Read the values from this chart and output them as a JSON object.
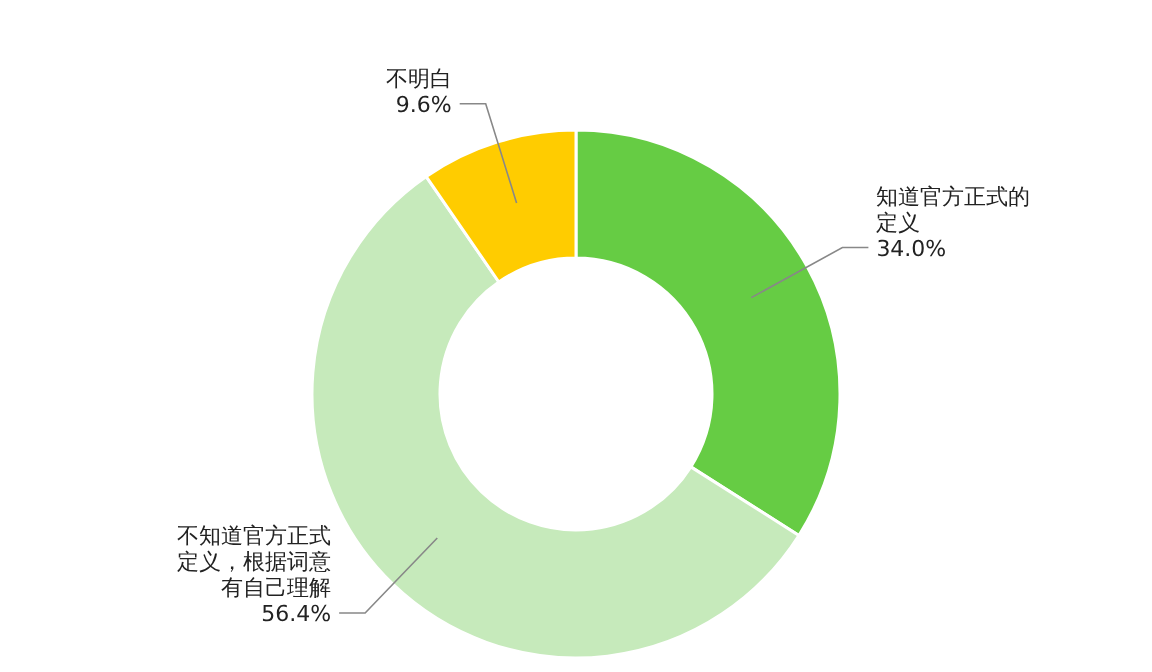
{
  "chart_data": {
    "type": "donut",
    "categories": [
      "知道官方正式的定义",
      "不知道官方正式定义，根据词意有自己理解",
      "不明白"
    ],
    "values": [
      34.0,
      56.4,
      9.6
    ],
    "colors": [
      "#66cc44",
      "#c6eabb",
      "#ffcc00"
    ],
    "value_labels": [
      "34.0%",
      "56.4%",
      "9.6%"
    ]
  }
}
